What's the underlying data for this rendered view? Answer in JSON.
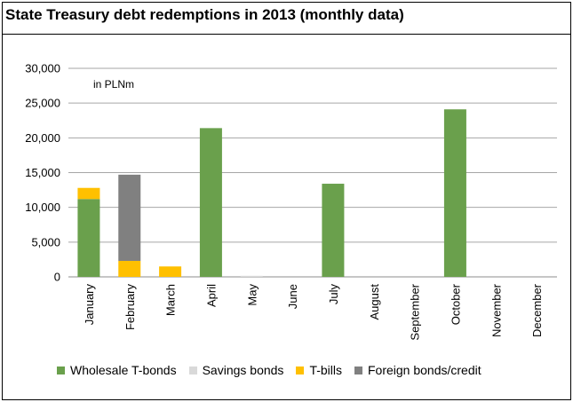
{
  "title": "State Treasury debt redemptions in 2013 (monthly data)",
  "chart_data": {
    "type": "bar",
    "stacked": true,
    "title": "State Treasury debt redemptions in 2013 (monthly data)",
    "unit_label": "in PLNm",
    "categories": [
      "January",
      "February",
      "March",
      "April",
      "May",
      "June",
      "July",
      "August",
      "September",
      "October",
      "November",
      "December"
    ],
    "series": [
      {
        "name": "Wholesale T-bonds",
        "color": "#6aa04c",
        "values": [
          11200,
          0,
          0,
          21400,
          0,
          0,
          13400,
          0,
          0,
          24100,
          0,
          0
        ]
      },
      {
        "name": "Savings bonds",
        "color": "#d9d9d9",
        "values": [
          0,
          0,
          0,
          0,
          150,
          0,
          0,
          0,
          0,
          0,
          0,
          0
        ]
      },
      {
        "name": "T-bills",
        "color": "#ffc000",
        "values": [
          1600,
          2300,
          1500,
          0,
          0,
          0,
          0,
          0,
          0,
          0,
          0,
          0
        ]
      },
      {
        "name": "Foreign bonds/credit",
        "color": "#808080",
        "values": [
          0,
          12400,
          0,
          0,
          0,
          0,
          0,
          0,
          0,
          0,
          0,
          0
        ]
      }
    ],
    "ylim": [
      0,
      30000
    ],
    "yticks": [
      0,
      5000,
      10000,
      15000,
      20000,
      25000,
      30000
    ],
    "ytick_labels": [
      "0",
      "5,000",
      "10,000",
      "15,000",
      "20,000",
      "25,000",
      "30,000"
    ],
    "grid": true,
    "legend_position": "bottom"
  }
}
